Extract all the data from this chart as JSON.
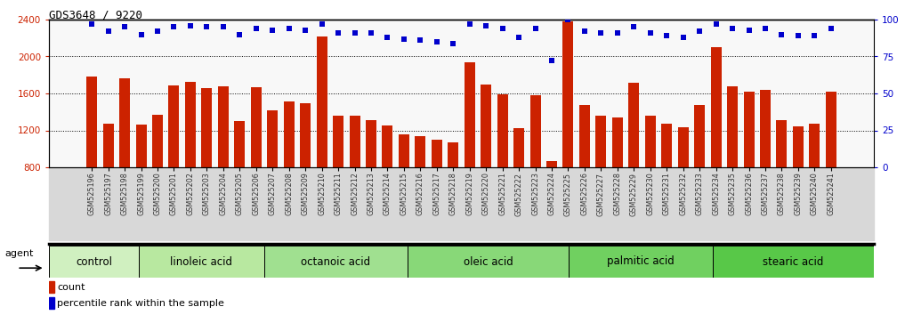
{
  "title": "GDS3648 / 9220",
  "samples": [
    "GSM525196",
    "GSM525197",
    "GSM525198",
    "GSM525199",
    "GSM525200",
    "GSM525201",
    "GSM525202",
    "GSM525203",
    "GSM525204",
    "GSM525205",
    "GSM525206",
    "GSM525207",
    "GSM525208",
    "GSM525209",
    "GSM525210",
    "GSM525211",
    "GSM525212",
    "GSM525213",
    "GSM525214",
    "GSM525215",
    "GSM525216",
    "GSM525217",
    "GSM525218",
    "GSM525219",
    "GSM525220",
    "GSM525221",
    "GSM525222",
    "GSM525223",
    "GSM525224",
    "GSM525225",
    "GSM525226",
    "GSM525227",
    "GSM525228",
    "GSM525229",
    "GSM525230",
    "GSM525231",
    "GSM525232",
    "GSM525233",
    "GSM525234",
    "GSM525235",
    "GSM525236",
    "GSM525237",
    "GSM525238",
    "GSM525239",
    "GSM525240",
    "GSM525241"
  ],
  "counts": [
    1780,
    1270,
    1760,
    1260,
    1370,
    1690,
    1730,
    1660,
    1680,
    1300,
    1670,
    1420,
    1510,
    1490,
    2220,
    1360,
    1360,
    1310,
    1250,
    1160,
    1140,
    1100,
    1070,
    1940,
    1700,
    1590,
    1220,
    1580,
    870,
    2380,
    1470,
    1360,
    1340,
    1720,
    1360,
    1270,
    1230,
    1470,
    2100,
    1680,
    1620,
    1640,
    1310,
    1240,
    1270,
    1620
  ],
  "percentile_ranks": [
    97,
    92,
    95,
    90,
    92,
    95,
    96,
    95,
    95,
    90,
    94,
    93,
    94,
    93,
    97,
    91,
    91,
    91,
    88,
    87,
    86,
    85,
    84,
    97,
    96,
    94,
    88,
    94,
    72,
    100,
    92,
    91,
    91,
    95,
    91,
    89,
    88,
    92,
    97,
    94,
    93,
    94,
    90,
    89,
    89,
    94
  ],
  "groups": [
    {
      "label": "control",
      "start": 0,
      "end": 5
    },
    {
      "label": "linoleic acid",
      "start": 5,
      "end": 12
    },
    {
      "label": "octanoic acid",
      "start": 12,
      "end": 20
    },
    {
      "label": "oleic acid",
      "start": 20,
      "end": 29
    },
    {
      "label": "palmitic acid",
      "start": 29,
      "end": 37
    },
    {
      "label": "stearic acid",
      "start": 37,
      "end": 46
    }
  ],
  "ylim_left": [
    800,
    2400
  ],
  "ylim_right": [
    0,
    100
  ],
  "bar_color": "#cc2200",
  "dot_color": "#0000cc",
  "left_yticks": [
    800,
    1200,
    1600,
    2000,
    2400
  ],
  "right_yticks": [
    0,
    25,
    50,
    75,
    100
  ],
  "grid_lines": [
    1200,
    1600,
    2000
  ],
  "group_colors": [
    "#d8f0d0",
    "#c0e8b0",
    "#a8e090",
    "#90d870",
    "#78d050",
    "#60c830"
  ],
  "xticklabel_bg": "#d8d8d8",
  "plot_bg": "#f8f8f8"
}
